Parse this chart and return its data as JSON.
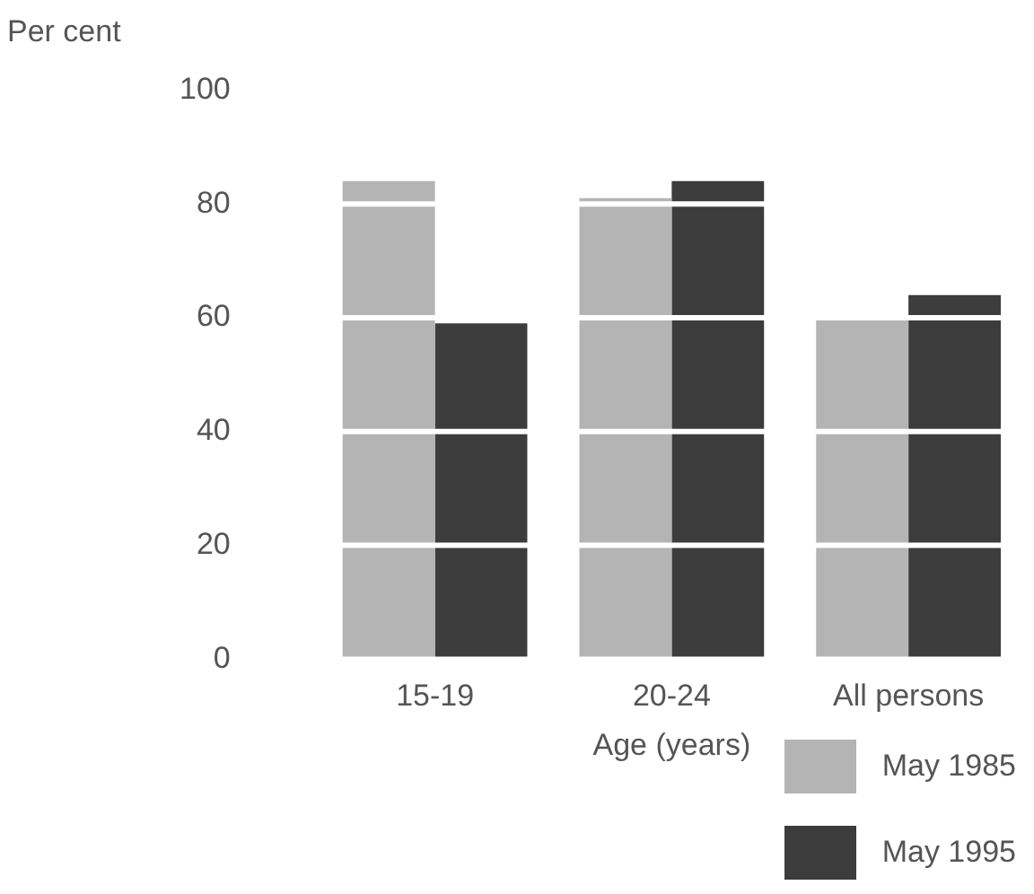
{
  "chart_data": {
    "type": "bar",
    "ylabel": "Per cent",
    "xlabel": "Age (years)",
    "categories": [
      "15-19",
      "20-24",
      "All persons"
    ],
    "series": [
      {
        "name": "May 1985",
        "color": "#b4b4b4",
        "values": [
          84,
          81,
          60
        ]
      },
      {
        "name": "May 1995",
        "color": "#3c3c3c",
        "values": [
          59,
          84,
          64
        ]
      }
    ],
    "ylim": [
      0,
      100
    ],
    "yticks": [
      0,
      20,
      40,
      60,
      80,
      100
    ],
    "grid": "y",
    "legend": "bottom right"
  }
}
